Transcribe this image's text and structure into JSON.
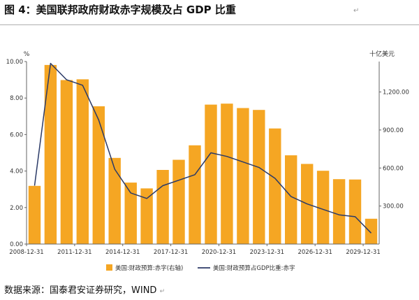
{
  "figure": {
    "title": "图 4：美国联邦政府财政赤字规模及占 GDP 比重",
    "mark": "↵",
    "source": "数据来源：国泰君安证券研究，WIND",
    "source_mark": "↵"
  },
  "colors": {
    "bar": "#F5A623",
    "line": "#2B3A67",
    "axis": "#666666",
    "tick_text": "#333333"
  },
  "chart_data": {
    "type": "bar+line",
    "title": "美国联邦政府财政赤字规模及占 GDP 比重",
    "left_axis_unit": "%",
    "right_axis_unit": "十亿美元",
    "left_ylim": [
      0,
      10
    ],
    "left_ticks": [
      0,
      2,
      4,
      6,
      8,
      10
    ],
    "left_tick_labels": [
      "0.00",
      "2.00",
      "4.00",
      "6.00",
      "8.00",
      "10.00"
    ],
    "right_ylim": [
      0,
      1440
    ],
    "right_ticks": [
      300,
      600,
      900,
      1200
    ],
    "right_tick_labels": [
      "300.00",
      "600.00",
      "900.00",
      "1,200.00"
    ],
    "x_tick_labels": [
      {
        "index": 0,
        "label": "2008-12-31"
      },
      {
        "index": 3,
        "label": "2011-12-31"
      },
      {
        "index": 6,
        "label": "2014-12-31"
      },
      {
        "index": 9,
        "label": "2017-12-31"
      },
      {
        "index": 12,
        "label": "2020-12-31"
      },
      {
        "index": 15,
        "label": "2023-12-31"
      },
      {
        "index": 18,
        "label": "2026-12-31"
      },
      {
        "index": 21,
        "label": "2029-12-31"
      }
    ],
    "series": [
      {
        "name": "美国:财政预算:赤字(右轴)",
        "type": "bar",
        "axis": "right",
        "values": [
          459,
          1413,
          1294,
          1300,
          1087,
          680,
          485,
          439,
          585,
          665,
          779,
          1100,
          1108,
          1073,
          1058,
          912,
          700,
          632,
          578,
          512,
          509,
          200
        ]
      },
      {
        "name": "美国:财政预算占GDP比重:赤字",
        "type": "line",
        "axis": "left",
        "values": [
          3.2,
          9.9,
          9.0,
          8.7,
          6.8,
          4.1,
          2.8,
          2.5,
          3.2,
          3.5,
          3.8,
          5.0,
          4.8,
          4.5,
          4.2,
          3.6,
          2.6,
          2.2,
          1.9,
          1.6,
          1.5,
          0.6
        ]
      }
    ]
  }
}
